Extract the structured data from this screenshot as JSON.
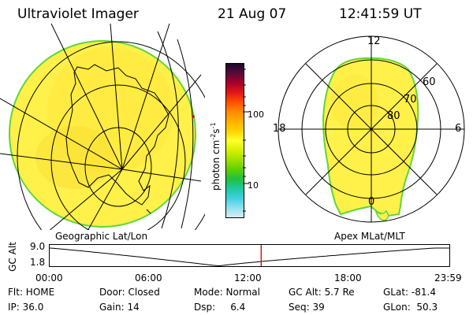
{
  "header": {
    "title": "Ultraviolet Imager",
    "date": "21 Aug 07",
    "time": "12:41:59 UT"
  },
  "geo_panel": {
    "label": "Geographic Lat/Lon"
  },
  "apex_panel": {
    "label": "Apex MLat/MLT",
    "mlt_labels": {
      "top": "12",
      "left": "18",
      "right": "6",
      "bottom": "0"
    },
    "lat_labels": [
      "60",
      "70",
      "80"
    ]
  },
  "colorbar": {
    "unit": "photon cm⁻²s⁻¹",
    "unit_base": "photon cm",
    "unit_sup1": "-2",
    "unit_s": "s",
    "unit_sup2": "-1",
    "ticks": [
      "100",
      "10"
    ],
    "colors": [
      "#1a0a2a",
      "#5a0a3a",
      "#a8002a",
      "#e01818",
      "#ff5000",
      "#ff8c00",
      "#ffb000",
      "#ffd400",
      "#ffff30",
      "#d8f000",
      "#a0e000",
      "#60d000",
      "#20c040",
      "#20c8a0",
      "#40d0e0",
      "#90e0f0",
      "#d8ecf4"
    ]
  },
  "altitude_strip": {
    "ylabel": "GC Alt",
    "ymax_label": "9.0",
    "ymin_label": "1.8",
    "xticks": [
      "00:00",
      "06:00",
      "12:00",
      "18:00",
      "23:59"
    ],
    "curve_color": "#000000",
    "marker_color": "#d00000"
  },
  "status": {
    "row1": {
      "flt": "Flt: HOME",
      "door": "Door: Closed",
      "mode": "Mode: Normal",
      "gcalt": "GC Alt: 5.7 Re",
      "glat": "GLat: -81.4"
    },
    "row2": {
      "ip": "IP: 36.0",
      "gain": "Gain: 14",
      "dsp": "Dsp:     6.4",
      "seq": "Seq: 39",
      "glon": "GLon:  50.3"
    }
  }
}
